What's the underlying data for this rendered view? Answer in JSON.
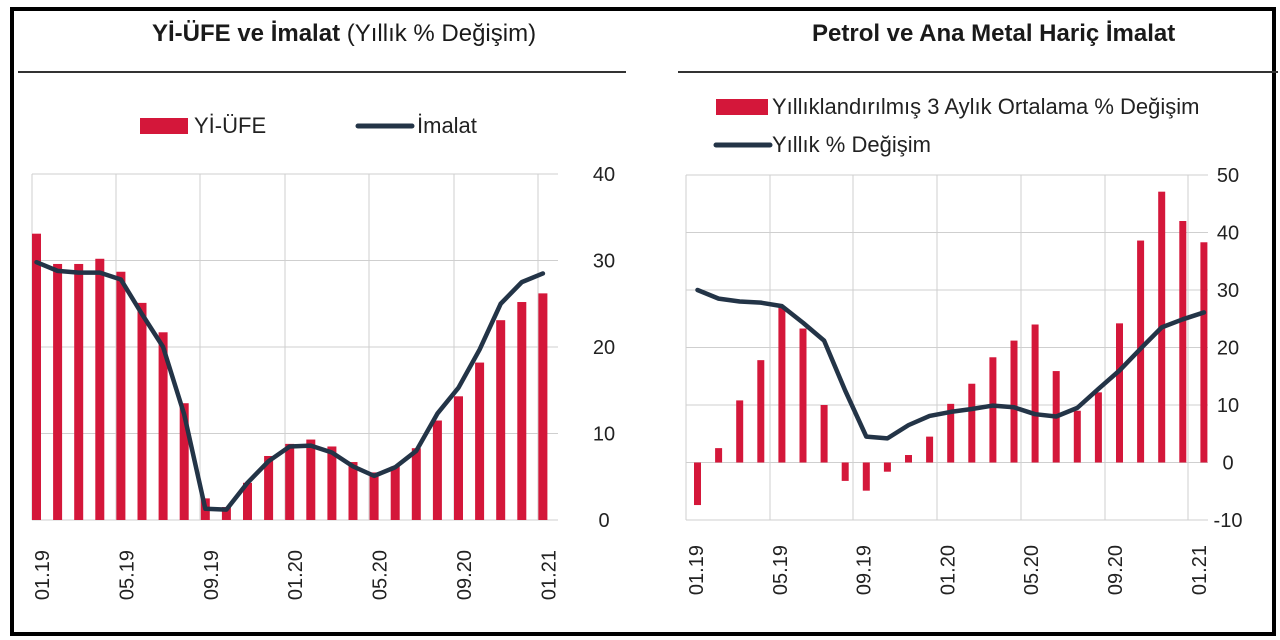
{
  "colors": {
    "bar": "#d4173a",
    "line": "#233447",
    "grid": "#cfcfcf"
  },
  "left_title": {
    "bold": "Yİ-ÜFE ve İmalat",
    "normal": " (Yıllık % Değişim)"
  },
  "right_title": "Petrol ve Ana Metal Hariç İmalat",
  "chart_data": [
    {
      "type": "bar",
      "title": "Yİ-ÜFE ve İmalat (Yıllık % Değişim)",
      "x_tick_labels": [
        "01.19",
        "05.19",
        "09.19",
        "01.20",
        "05.20",
        "09.20",
        "01.21"
      ],
      "y_ticks": [
        "40",
        "30",
        "20",
        "10",
        "0"
      ],
      "ylim": [
        0,
        40
      ],
      "y_axis_side": "right",
      "legend": [
        "Yİ-ÜFE",
        "İmalat"
      ],
      "legend_position": "top",
      "grid": "vertical",
      "categories": [
        "01.19",
        "02.19",
        "03.19",
        "04.19",
        "05.19",
        "06.19",
        "07.19",
        "08.19",
        "09.19",
        "10.19",
        "11.19",
        "12.19",
        "01.20",
        "02.20",
        "03.20",
        "04.20",
        "05.20",
        "06.20",
        "07.20",
        "08.20",
        "09.20",
        "10.20",
        "11.20",
        "12.20",
        "01.21"
      ],
      "series": [
        {
          "name": "Yİ-ÜFE",
          "kind": "bar",
          "values": [
            33.1,
            29.6,
            29.6,
            30.2,
            28.7,
            25.1,
            21.7,
            13.5,
            2.5,
            1.5,
            4.3,
            7.4,
            8.8,
            9.3,
            8.5,
            6.7,
            5.5,
            6.2,
            8.3,
            11.5,
            14.3,
            18.2,
            23.1,
            25.2,
            26.2
          ]
        },
        {
          "name": "İmalat",
          "kind": "line",
          "values": [
            29.8,
            28.8,
            28.6,
            28.6,
            27.8,
            23.8,
            20.0,
            12.2,
            1.3,
            1.2,
            4.3,
            6.8,
            8.5,
            8.6,
            7.8,
            6.2,
            5.1,
            6.1,
            8.0,
            12.3,
            15.3,
            19.7,
            25.0,
            27.5,
            28.5
          ]
        }
      ]
    },
    {
      "type": "bar",
      "title": "Petrol ve Ana Metal Hariç İmalat",
      "x_tick_labels": [
        "01.19",
        "05.19",
        "09.19",
        "01.20",
        "05.20",
        "09.20",
        "01.21"
      ],
      "y_ticks": [
        "50",
        "40",
        "30",
        "20",
        "10",
        "0",
        "-10"
      ],
      "ylim": [
        -10,
        50
      ],
      "y_axis_side": "right",
      "legend": [
        "Yıllıklandırılmış 3 Aylık Ortalama % Değişim",
        "Yıllık % Değişim"
      ],
      "legend_position": "top",
      "grid": "vertical",
      "categories": [
        "01.19",
        "02.19",
        "03.19",
        "04.19",
        "05.19",
        "06.19",
        "07.19",
        "08.19",
        "09.19",
        "10.19",
        "11.19",
        "12.19",
        "01.20",
        "02.20",
        "03.20",
        "04.20",
        "05.20",
        "06.20",
        "07.20",
        "08.20",
        "09.20",
        "10.20",
        "11.20",
        "12.20",
        "01.21"
      ],
      "series": [
        {
          "name": "Yıllıklandırılmış 3 Aylık Ortalama % Değişim",
          "kind": "bar",
          "values": [
            -7.4,
            2.5,
            10.8,
            17.8,
            27.0,
            23.3,
            10.0,
            -3.2,
            -4.9,
            -1.6,
            1.3,
            4.5,
            10.2,
            13.7,
            18.3,
            21.2,
            24.0,
            15.9,
            9.0,
            12.2,
            24.2,
            38.6,
            47.1,
            42.0,
            38.3
          ]
        },
        {
          "name": "Yıllık % Değişim",
          "kind": "line",
          "values": [
            30.0,
            28.5,
            28.0,
            27.8,
            27.2,
            24.3,
            21.2,
            12.5,
            4.5,
            4.2,
            6.5,
            8.1,
            8.8,
            9.3,
            9.9,
            9.6,
            8.4,
            8.0,
            9.5,
            12.8,
            16.0,
            19.8,
            23.5,
            24.9,
            26.1
          ]
        }
      ]
    }
  ]
}
